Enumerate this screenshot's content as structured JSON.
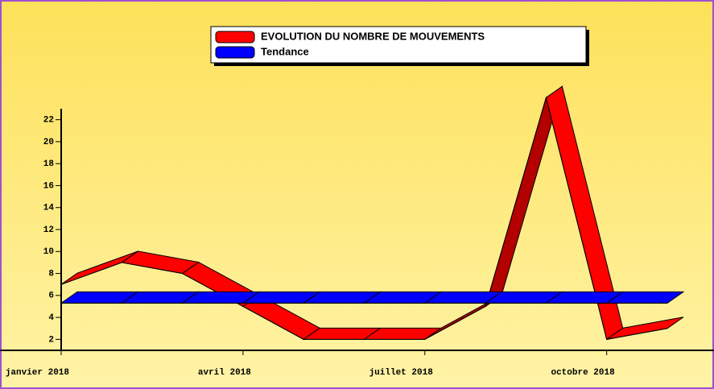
{
  "chart_data": {
    "type": "line",
    "x": [
      "2018-01",
      "2018-02",
      "2018-03",
      "2018-04",
      "2018-05",
      "2018-06",
      "2018-07",
      "2018-08",
      "2018-09",
      "2018-10",
      "2018-11"
    ],
    "series": [
      {
        "name": "EVOLUTION DU NOMBRE DE MOUVEMENTS",
        "color": "#ff0000",
        "values": [
          7,
          9,
          8,
          5,
          2,
          2,
          2,
          5,
          24,
          2,
          3
        ]
      },
      {
        "name": "Tendance",
        "color": "#0000ff",
        "values": [
          5.3,
          5.3,
          5.3,
          5.3,
          5.3,
          5.3,
          5.3,
          5.3,
          5.3,
          5.3,
          5.3
        ]
      }
    ],
    "ylim": [
      1,
      23
    ],
    "yticks": [
      2,
      4,
      6,
      8,
      10,
      12,
      14,
      16,
      18,
      20,
      22
    ],
    "xticks": [
      {
        "value": "2018-01",
        "label": "janvier 2018"
      },
      {
        "value": "2018-04",
        "label": "avril 2018"
      },
      {
        "value": "2018-07",
        "label": "juillet 2018"
      },
      {
        "value": "2018-10",
        "label": "octobre 2018"
      }
    ]
  }
}
